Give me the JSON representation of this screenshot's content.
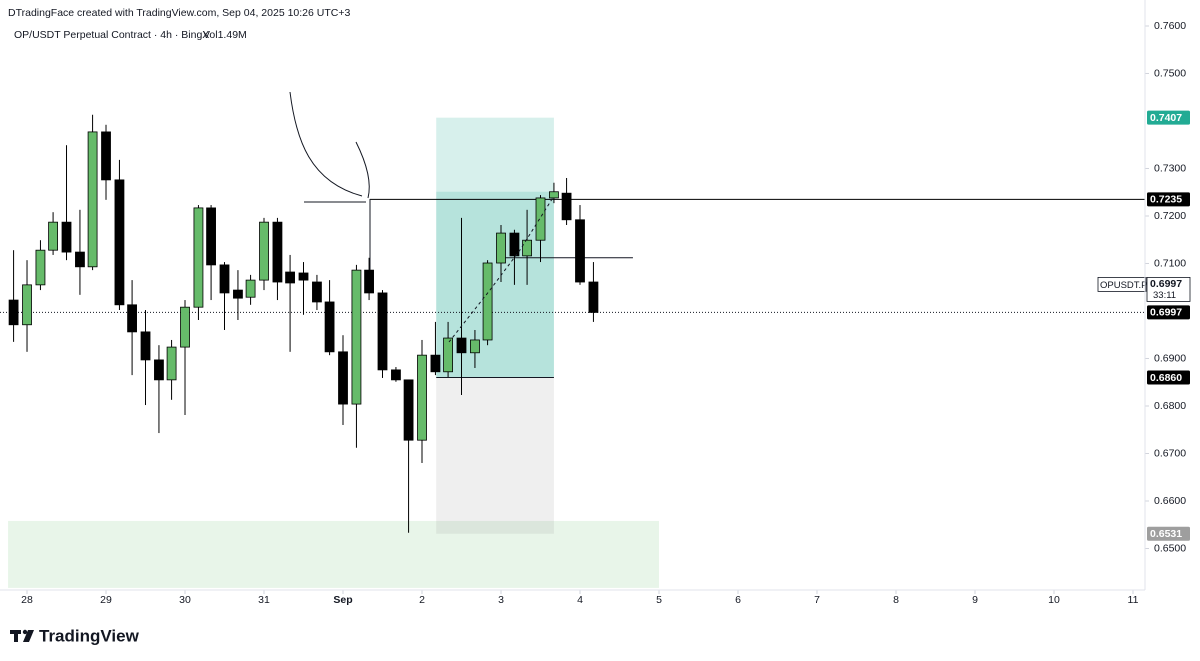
{
  "header": "DTradingFace created with TradingView.com, Sep 04, 2025 10:26 UTC+3",
  "footer": "TradingView",
  "chart_data": {
    "type": "candlestick",
    "title": "OP/USDT Perpetual Contract · 4h · BingX",
    "volume": "Vol1.49M",
    "xlim": [
      27.658,
      42.152
    ],
    "ylim": [
      0.64126,
      0.76547
    ],
    "xticks": [
      28,
      29,
      30,
      31,
      {
        "value": 32,
        "label": "Sep"
      },
      {
        "value": 33,
        "label": "2"
      },
      {
        "value": 34,
        "label": "3"
      },
      {
        "value": 35,
        "label": "4"
      },
      {
        "value": 36,
        "label": "5"
      },
      {
        "value": 37,
        "label": "6"
      },
      {
        "value": 38,
        "label": "7"
      },
      {
        "value": 39,
        "label": "8"
      },
      {
        "value": 40,
        "label": "9"
      },
      {
        "value": 41,
        "label": "10"
      },
      {
        "value": 42,
        "label": "11"
      }
    ],
    "yticks": [
      {
        "value": 0.76,
        "label": "0.7600"
      },
      {
        "value": 0.75,
        "label": "0.7500"
      },
      {
        "value": 0.73,
        "label": "0.7300"
      },
      {
        "value": 0.72,
        "label": "0.7200"
      },
      {
        "value": 0.71,
        "label": "0.7100"
      },
      {
        "value": 0.69,
        "label": "0.6900"
      },
      {
        "value": 0.68,
        "label": "0.6800"
      },
      {
        "value": 0.67,
        "label": "0.6700"
      },
      {
        "value": 0.66,
        "label": "0.6600"
      },
      {
        "value": 0.65,
        "label": "0.6500"
      }
    ],
    "grid": false,
    "up_color": "#66bb6a",
    "down_color": "#000000",
    "x": [
      27.83,
      28,
      28.17,
      28.33,
      28.5,
      28.67,
      28.83,
      29,
      29.17,
      29.33,
      29.5,
      29.67,
      29.83,
      30,
      30.17,
      30.33,
      30.5,
      30.67,
      30.83,
      31,
      31.17,
      31.33,
      31.5,
      31.67,
      31.83,
      32,
      32.17,
      32.33,
      32.5,
      32.67,
      32.83,
      33,
      33.17,
      33.33,
      33.5,
      33.67,
      33.83,
      34,
      34.17,
      34.33,
      34.5,
      34.67,
      34.83,
      35,
      35.17
    ],
    "open": [
      0.7023,
      0.6971,
      0.7055,
      0.7128,
      0.7187,
      0.7124,
      0.7093,
      0.7377,
      0.7276,
      0.7013,
      0.6956,
      0.6897,
      0.6855,
      0.6924,
      0.7008,
      0.7217,
      0.7097,
      0.7044,
      0.7029,
      0.7065,
      0.7187,
      0.7082,
      0.708,
      0.7061,
      0.7019,
      0.6914,
      0.6804,
      0.7086,
      0.7038,
      0.6876,
      0.6855,
      0.6728,
      0.6907,
      0.6872,
      0.6943,
      0.6912,
      0.6939,
      0.7101,
      0.7164,
      0.7116,
      0.7149,
      0.7238,
      0.7248,
      0.7192,
      0.7061
    ],
    "high": [
      0.7128,
      0.7107,
      0.7149,
      0.7208,
      0.7349,
      0.7213,
      0.7413,
      0.7392,
      0.7318,
      0.7065,
      0.7002,
      0.6928,
      0.6939,
      0.7023,
      0.7223,
      0.7223,
      0.7103,
      0.7086,
      0.7076,
      0.7196,
      0.7196,
      0.7118,
      0.7103,
      0.7076,
      0.7065,
      0.6949,
      0.7097,
      0.7112,
      0.7044,
      0.6882,
      0.6855,
      0.6939,
      0.6977,
      0.6977,
      0.7196,
      0.696,
      0.7107,
      0.7181,
      0.7171,
      0.7213,
      0.7244,
      0.727,
      0.728,
      0.7223,
      0.7103
    ],
    "low": [
      0.6935,
      0.6914,
      0.7044,
      0.7118,
      0.7107,
      0.7034,
      0.7086,
      0.7234,
      0.7002,
      0.6865,
      0.6802,
      0.6743,
      0.6813,
      0.6781,
      0.6981,
      0.7023,
      0.696,
      0.6981,
      0.7013,
      0.7044,
      0.7023,
      0.6914,
      0.6992,
      0.7002,
      0.6907,
      0.676,
      0.6712,
      0.7023,
      0.6859,
      0.6851,
      0.6533,
      0.668,
      0.6865,
      0.6861,
      0.6823,
      0.688,
      0.6928,
      0.7061,
      0.7055,
      0.7055,
      0.7103,
      0.7227,
      0.7181,
      0.7055,
      0.6977
    ],
    "close": [
      0.6971,
      0.7055,
      0.7128,
      0.7187,
      0.7124,
      0.7093,
      0.7377,
      0.7276,
      0.7013,
      0.6956,
      0.6897,
      0.6855,
      0.6924,
      0.7008,
      0.7217,
      0.7097,
      0.7038,
      0.7027,
      0.7065,
      0.7187,
      0.7061,
      0.7059,
      0.7065,
      0.7019,
      0.6914,
      0.6804,
      0.7086,
      0.7038,
      0.6876,
      0.6855,
      0.6728,
      0.6907,
      0.6872,
      0.6943,
      0.6912,
      0.6939,
      0.7101,
      0.7164,
      0.7116,
      0.7149,
      0.7238,
      0.7251,
      0.7192,
      0.7061,
      0.6997
    ],
    "zones": [
      {
        "top": 0.6558,
        "bottom": 0.6417,
        "x_start": 27.76,
        "x_end": 36,
        "color": "#e8f5e9"
      }
    ],
    "position": {
      "x_start": 33.18,
      "x_end": 34.67,
      "target": {
        "value": 0.7407,
        "label": "0.7407",
        "color": "#22ab94"
      },
      "entry": {
        "value": 0.686,
        "label": "0.6860",
        "color": "#000000"
      },
      "stop": {
        "value": 0.6531,
        "label": "0.6531",
        "color": "#9e9e9e"
      }
    },
    "levels": [
      {
        "value": 0.7235,
        "label": "0.7235",
        "x_start": 32.34,
        "color": "#000000"
      }
    ],
    "segments": [
      {
        "value": 0.7112,
        "x_start": 34.05,
        "x_end": 35.67
      }
    ],
    "last_price": {
      "symbol": "OPUSDT.P",
      "value": 0.6997,
      "label": "0.6997",
      "countdown": "33:11",
      "color": "#000000"
    }
  }
}
